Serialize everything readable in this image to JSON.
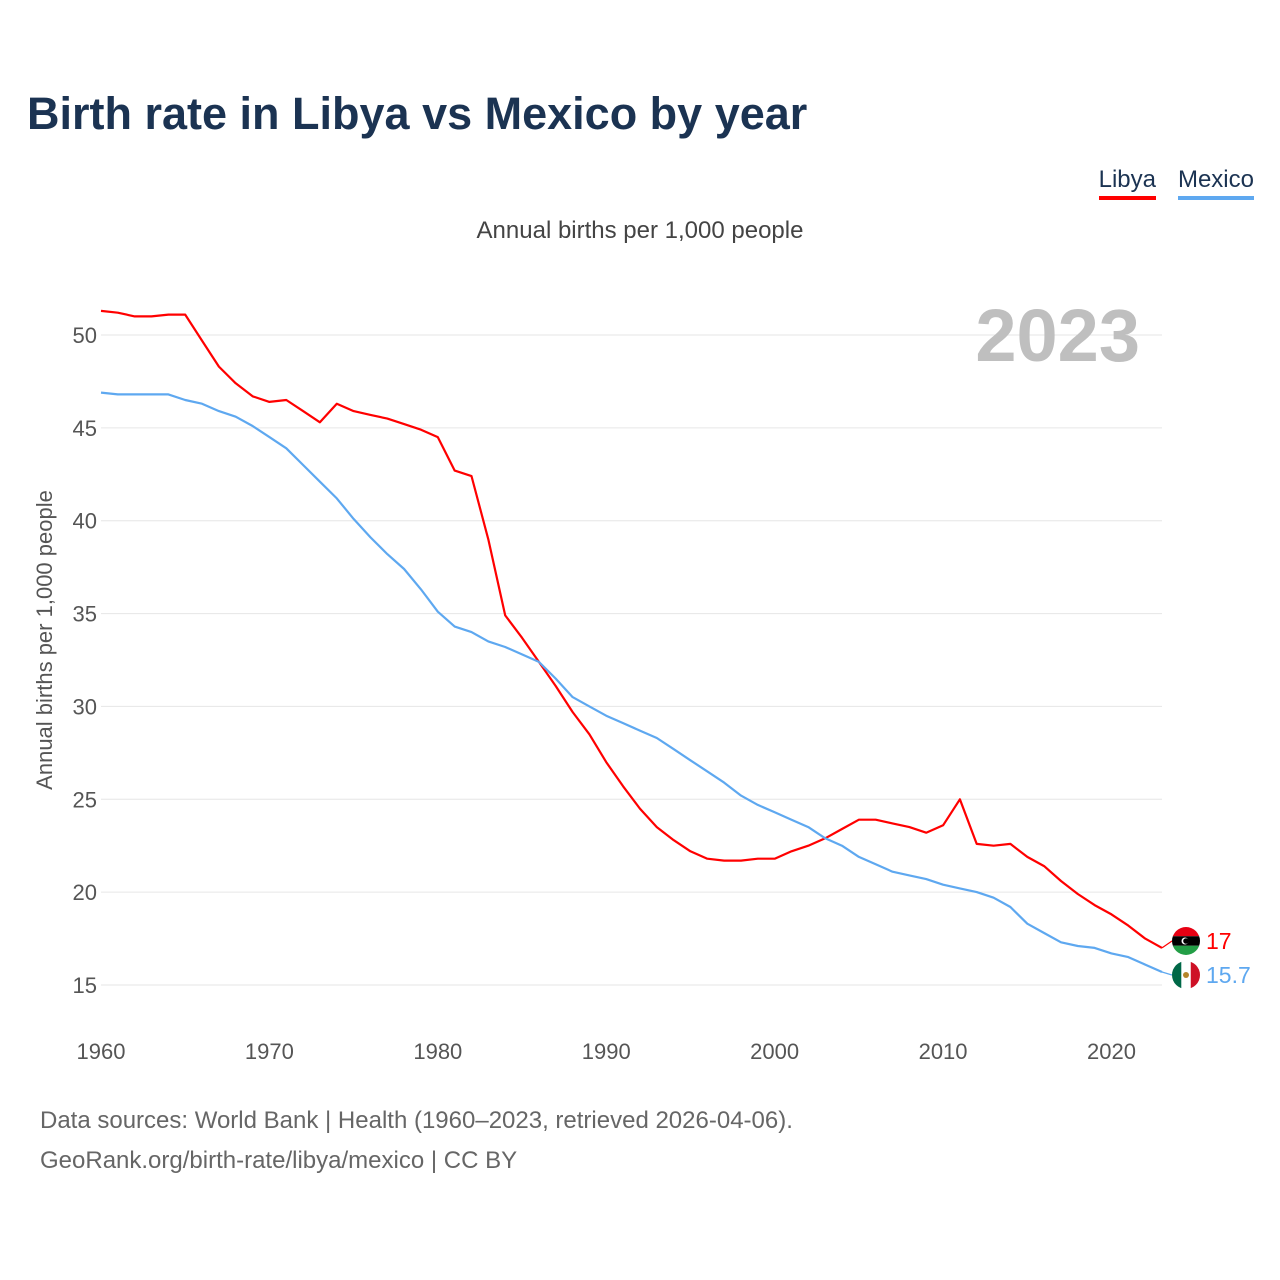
{
  "header": {
    "title": "Birth rate in Libya vs Mexico by year"
  },
  "legend": [
    {
      "label": "Libya",
      "color": "#ff0000"
    },
    {
      "label": "Mexico",
      "color": "#5ea8f0"
    }
  ],
  "footer": {
    "line1": "Data sources: World Bank | Health (1960–2023, retrieved 2026-04-06).",
    "line2": "GeoRank.org/birth-rate/libya/mexico | CC BY"
  },
  "chart_data": {
    "type": "line",
    "title": "Birth rate in Libya vs Mexico by year",
    "subtitle": "Annual births per 1,000 people",
    "ylabel": "Annual births per 1,000 people",
    "xlabel": "",
    "year_label": "2023",
    "xlim": [
      1960,
      2023
    ],
    "ylim": [
      13,
      52.5
    ],
    "xticks": [
      1960,
      1970,
      1980,
      1990,
      2000,
      2010,
      2020
    ],
    "yticks": [
      15,
      20,
      25,
      30,
      35,
      40,
      45,
      50
    ],
    "grid": true,
    "legend_position": "top-right",
    "x_start": 1960,
    "series": [
      {
        "name": "Libya",
        "color": "#ff0000",
        "end_label": "17",
        "values": [
          51.3,
          51.2,
          51.0,
          51.0,
          51.1,
          51.1,
          49.7,
          48.3,
          47.4,
          46.7,
          46.4,
          46.5,
          45.9,
          45.3,
          46.3,
          45.9,
          45.7,
          45.5,
          45.2,
          44.9,
          44.5,
          42.7,
          42.4,
          39.0,
          34.9,
          33.7,
          32.4,
          31.1,
          29.7,
          28.5,
          27.0,
          25.7,
          24.5,
          23.5,
          22.8,
          22.2,
          21.8,
          21.7,
          21.7,
          21.8,
          21.8,
          22.2,
          22.5,
          22.9,
          23.4,
          23.9,
          23.9,
          23.7,
          23.5,
          23.2,
          23.6,
          25.0,
          22.6,
          22.5,
          22.6,
          21.9,
          21.4,
          20.6,
          19.9,
          19.3,
          18.8,
          18.2,
          17.5,
          17.0
        ]
      },
      {
        "name": "Mexico",
        "color": "#5ea8f0",
        "end_label": "15.7",
        "values": [
          46.9,
          46.8,
          46.8,
          46.8,
          46.8,
          46.5,
          46.3,
          45.9,
          45.6,
          45.1,
          44.5,
          43.9,
          43.0,
          42.1,
          41.2,
          40.1,
          39.1,
          38.2,
          37.4,
          36.3,
          35.1,
          34.3,
          34.0,
          33.5,
          33.2,
          32.8,
          32.4,
          31.5,
          30.5,
          30.0,
          29.5,
          29.1,
          28.7,
          28.3,
          27.7,
          27.1,
          26.5,
          25.9,
          25.2,
          24.7,
          24.3,
          23.9,
          23.5,
          22.9,
          22.5,
          21.9,
          21.5,
          21.1,
          20.9,
          20.7,
          20.4,
          20.2,
          20.0,
          19.7,
          19.2,
          18.3,
          17.8,
          17.3,
          17.1,
          17.0,
          16.7,
          16.5,
          16.1,
          15.7
        ]
      }
    ]
  }
}
